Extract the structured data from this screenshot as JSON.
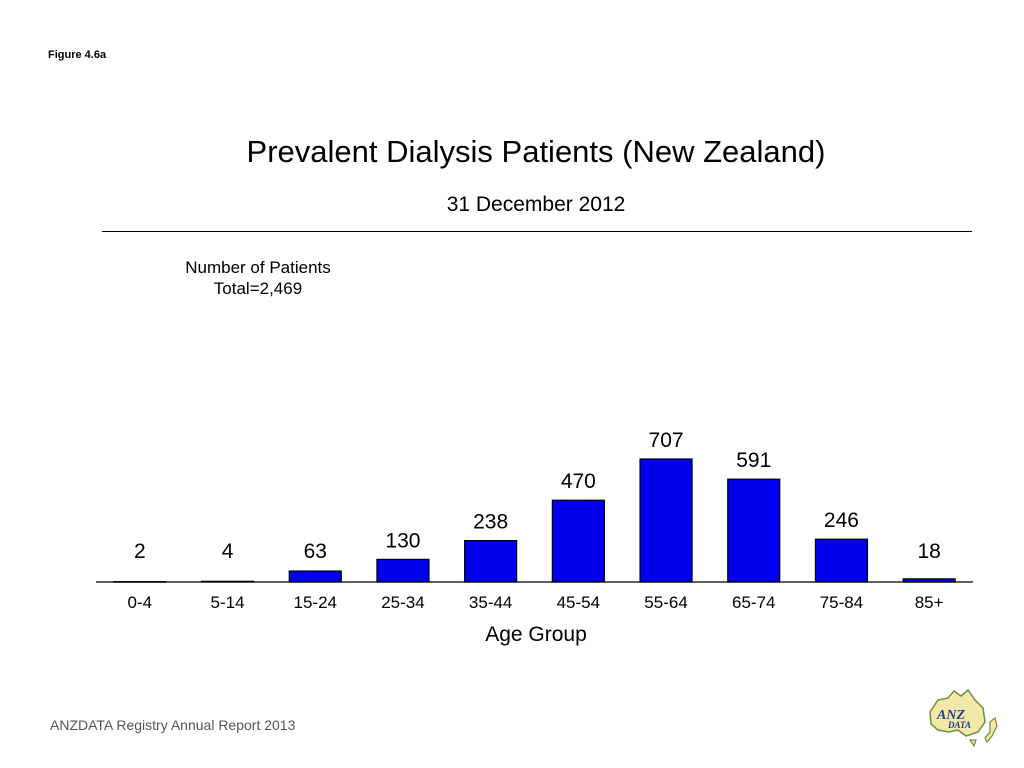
{
  "figure_label": "Figure 4.6a",
  "footer": "ANZDATA Registry Annual Report 2013",
  "logo": {
    "text_1": "ANZ",
    "text_2": "DATA"
  },
  "colors": {
    "bar": "#0000ee",
    "bar_outline": "#000000",
    "axis": "#000000"
  },
  "chart_data": {
    "type": "bar",
    "title": "Prevalent Dialysis Patients (New Zealand)",
    "subtitle": "31 December 2012",
    "xlabel": "Age Group",
    "ylabel": "",
    "annotation_line1": "Number of Patients",
    "annotation_line2": "Total=2,469",
    "categories": [
      "0-4",
      "5-14",
      "15-24",
      "25-34",
      "35-44",
      "45-54",
      "55-64",
      "65-74",
      "75-84",
      "85+"
    ],
    "values": [
      2,
      4,
      63,
      130,
      238,
      470,
      707,
      591,
      246,
      18
    ],
    "data_labels": [
      "2",
      "4",
      "63",
      "130",
      "238",
      "470",
      "707",
      "591",
      "246",
      "18"
    ],
    "ylim": [
      0,
      707
    ],
    "grid": false,
    "legend": "none"
  }
}
